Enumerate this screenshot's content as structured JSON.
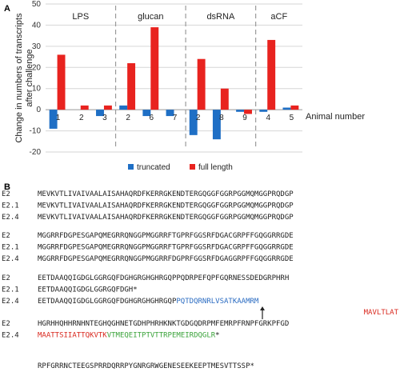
{
  "panel_a": {
    "letter": "A",
    "chart_data": {
      "type": "bar",
      "ylabel": "Change in numbers of transcripts after challenge",
      "ylim": [
        -20,
        50
      ],
      "yticks": [
        -20,
        -10,
        0,
        10,
        20,
        30,
        40,
        50
      ],
      "grid": "horizontal",
      "groups": [
        "LPS",
        "glucan",
        "dsRNA",
        "aCF"
      ],
      "x_title": "Animal number",
      "categories": [
        "1",
        "2",
        "3",
        "2",
        "6",
        "7",
        "2",
        "8",
        "9",
        "4",
        "5"
      ],
      "category_group": [
        0,
        0,
        0,
        1,
        1,
        1,
        2,
        2,
        2,
        3,
        3
      ],
      "series": [
        {
          "name": "truncated",
          "color": "#1f6fc5",
          "values": [
            -9,
            0,
            -3,
            2,
            -3,
            -3,
            -12,
            -14,
            -1,
            -1,
            1
          ]
        },
        {
          "name": "full length",
          "color": "#e8231f",
          "values": [
            26,
            2,
            2,
            22,
            39,
            0,
            24,
            10,
            -2,
            33,
            2
          ]
        }
      ],
      "legend": "bottom"
    }
  },
  "panel_b": {
    "letter": "B",
    "blocks": [
      [
        {
          "name": "E2",
          "seq": "MEVKVTLIVAIVAALAISAHAQRDFKERRGKENDTERGQGGFGGRPGGMQMGGPRQDGP"
        },
        {
          "name": "E2.1",
          "seq": "MEVKVTLIVAIVAALAISAHAQRDFKERRGKENDTERGQGGFGGRPGGMQMGGPRQDGP"
        },
        {
          "name": "E2.4",
          "seq": "MEVKVTLIVAIVAALAISAHAQRDFKERRGKENDTERGQGGFGGRPGGMQMGGPRQDGP"
        }
      ],
      [
        {
          "name": "E2",
          "seq": "MGGRRFDGPESGAPQMEGRRQNGGPMGGRRFTGPRFGGSRFDGACGRPFFGQGGRRGDE"
        },
        {
          "name": "E2.1",
          "seq": "MGGRRFDGPESGAPQMEGRRQNGGPMGGRRFTGPRFGGSRFDGACGRPFFGQGGRRGDE"
        },
        {
          "name": "E2.4",
          "seq": "MGGRRFDGPESGAPQMEGRRQNGGPMGGRRFDGPRFGGSRFDGAGGRPFFGQGGRRGDE"
        }
      ],
      [
        {
          "name": "E2",
          "seq": "EETDAAQQIGDGLGGRGQFDGHGRGHGHRGQPPQDRPEFQPFGQRNESSDEDGRPHRH"
        },
        {
          "name": "E2.1",
          "seq": "EETDAAQQIGDGLGGRGQFDGH*"
        },
        {
          "name": "E2.4",
          "seq": "EETDAAQQIGDGLGGRGQFDGHGRGHGHRGQP",
          "blue": "PQTDQRNRLVSATKAAMRM",
          "red_cont": "MAVLTLAT"
        }
      ],
      [
        {
          "name": "E2",
          "seq": "HGRHHQHHRNHNTEGHQGHNETGDHPHRHKNKTGDGQDRPMFEMRPFRNPFGRKPFGD"
        },
        {
          "name": "E2.4",
          "red": "MAATTSIIATTQKVTK",
          "green": "VTMEQEITPTVTTRPEMEIRDQGLR",
          "star": "*"
        }
      ],
      [
        {
          "name": "",
          "seq": "RPFGRRNCTEEGSPRRDQRRPYGNRGRWGENESEEKEEPTMESVTTSSP*"
        }
      ]
    ]
  }
}
